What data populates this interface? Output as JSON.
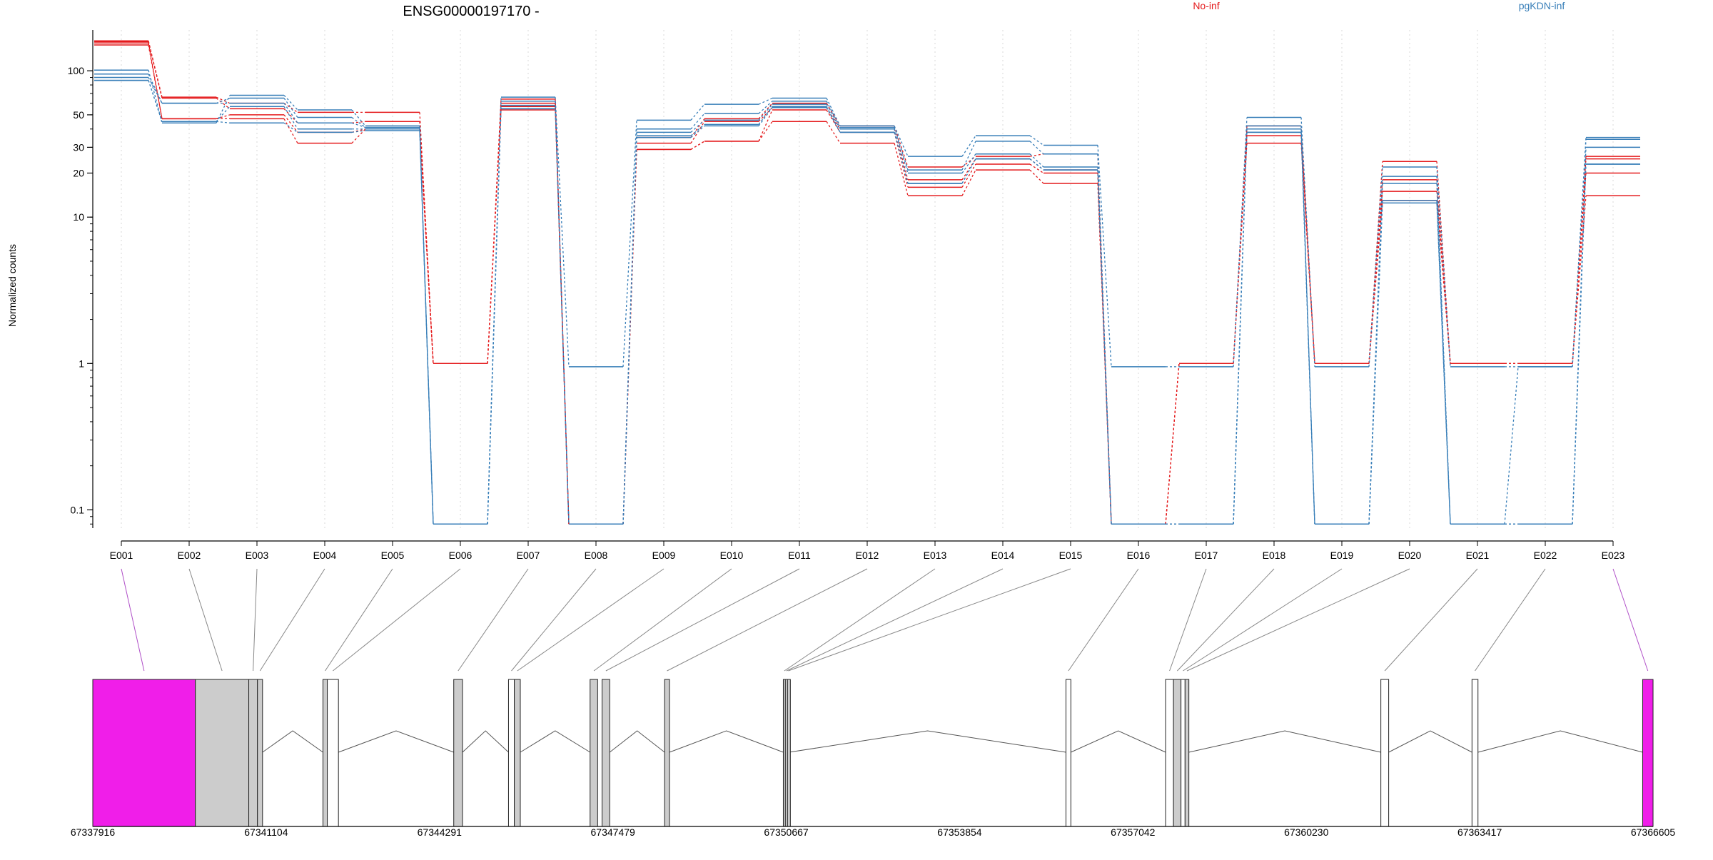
{
  "chart_data": {
    "type": "line",
    "title": "ENSG00000197170 -",
    "ylabel": "Normalized counts",
    "xlabel": "",
    "yscale": "log",
    "ylim": [
      0.075,
      190
    ],
    "yticks": [
      0.1,
      1,
      10,
      20,
      30,
      50,
      100
    ],
    "ytick_labels": [
      "0.1",
      "1",
      "10",
      "20",
      "30",
      "50",
      "100"
    ],
    "grid": "vertical dotted at each exon",
    "legend_placement": "top-right",
    "legend": [
      {
        "label": "No-inf",
        "color": "#e41a1c"
      },
      {
        "label": "pgKDN-inf",
        "color": "#377eb8"
      }
    ],
    "categories": [
      "E001",
      "E002",
      "E003",
      "E004",
      "E005",
      "E006",
      "E007",
      "E008",
      "E009",
      "E010",
      "E011",
      "E012",
      "E013",
      "E014",
      "E015",
      "E016",
      "E017",
      "E018",
      "E019",
      "E020",
      "E021",
      "E022",
      "E023"
    ],
    "series": [
      {
        "group": "No-inf",
        "color": "#e41a1c",
        "values": [
          160,
          66,
          60,
          52,
          52,
          1,
          64,
          0.08,
          35,
          47,
          60,
          42,
          22,
          26,
          27,
          0.08,
          1,
          42,
          1,
          24,
          1,
          1,
          26
        ]
      },
      {
        "group": "No-inf",
        "color": "#e41a1c",
        "values": [
          158,
          65,
          55,
          44,
          45,
          1,
          60,
          0.08,
          32,
          45,
          56,
          40,
          18,
          25,
          21,
          0.08,
          1,
          40,
          1,
          18,
          1,
          1,
          25
        ]
      },
      {
        "group": "No-inf",
        "color": "#e41a1c",
        "values": [
          155,
          47,
          50,
          38,
          40,
          1,
          57,
          0.08,
          29,
          33,
          54,
          38,
          16,
          23,
          20,
          0.08,
          1,
          36,
          1,
          15,
          1,
          1,
          20
        ]
      },
      {
        "group": "No-inf",
        "color": "#e41a1c",
        "values": [
          150,
          47,
          47,
          32,
          40,
          1,
          54,
          0.08,
          29,
          33,
          45,
          32,
          14,
          21,
          17,
          0.08,
          1,
          32,
          1,
          13,
          1,
          1,
          14
        ]
      },
      {
        "group": "pgKDN-inf",
        "color": "#377eb8",
        "values": [
          101,
          44,
          68,
          54,
          42,
          0.08,
          66,
          0.95,
          46,
          59,
          65,
          42,
          26,
          36,
          31,
          0.95,
          0.95,
          48,
          0.95,
          22,
          0.95,
          0.95,
          35
        ]
      },
      {
        "group": "pgKDN-inf",
        "color": "#377eb8",
        "values": [
          95,
          60,
          65,
          48,
          41,
          0.08,
          62,
          0.08,
          40,
          51,
          62,
          41,
          21,
          33,
          27,
          0.08,
          0.08,
          42,
          0.08,
          19,
          0.08,
          0.95,
          34
        ]
      },
      {
        "group": "pgKDN-inf",
        "color": "#377eb8",
        "values": [
          90,
          60,
          60,
          44,
          41,
          0.08,
          58,
          0.08,
          38,
          46,
          59,
          40,
          20,
          27,
          22,
          0.08,
          0.08,
          40,
          0.08,
          17,
          0.08,
          0.08,
          30
        ]
      },
      {
        "group": "pgKDN-inf",
        "color": "#377eb8",
        "values": [
          86,
          45,
          57,
          40,
          40,
          0.08,
          55,
          0.08,
          36,
          43,
          57,
          38,
          17,
          25,
          21,
          0.08,
          0.08,
          38,
          0.08,
          13,
          0.08,
          0.08,
          23
        ]
      },
      {
        "group": "pgKDN-inf",
        "color": "#377eb8",
        "values": [
          86,
          45,
          44,
          38,
          39,
          0.08,
          55,
          0.08,
          35,
          42,
          56,
          38,
          17,
          25,
          21,
          0.08,
          0.08,
          38,
          0.08,
          12.5,
          0.08,
          0.08,
          23
        ]
      }
    ],
    "gene_model": {
      "coordinate_range": [
        67337916,
        67366605
      ],
      "coordinate_ticks": [
        "67337916",
        "67341104",
        "67344291",
        "67347479",
        "67350667",
        "67353854",
        "67357042",
        "67360230",
        "67363417",
        "67366605"
      ],
      "exons": [
        {
          "id": "E001",
          "start": 67337916,
          "end": 67339802,
          "fill": "#f01ee9"
        },
        {
          "id": "E002",
          "start": 67339802,
          "end": 67340784,
          "fill": "#cccccc"
        },
        {
          "id": "E003",
          "start": 67340784,
          "end": 67340944,
          "fill": "#cccccc"
        },
        {
          "id": "E004",
          "start": 67340944,
          "end": 67341037,
          "fill": "#cccccc"
        },
        {
          "id": "E005",
          "start": 67342148,
          "end": 67342228,
          "fill": "#cccccc"
        },
        {
          "id": "E006",
          "start": 67342228,
          "end": 67342433,
          "fill": "#ffffff"
        },
        {
          "id": "E007",
          "start": 67344553,
          "end": 67344714,
          "fill": "#cccccc"
        },
        {
          "id": "E008",
          "start": 67345560,
          "end": 67345667,
          "fill": "#ffffff"
        },
        {
          "id": "E009",
          "start": 67345667,
          "end": 67345777,
          "fill": "#cccccc"
        },
        {
          "id": "E010",
          "start": 67347060,
          "end": 67347199,
          "fill": "#cccccc"
        },
        {
          "id": "E011",
          "start": 67347280,
          "end": 67347421,
          "fill": "#cccccc"
        },
        {
          "id": "E012",
          "start": 67348430,
          "end": 67348520,
          "fill": "#cccccc"
        },
        {
          "id": "E013",
          "start": 67350613,
          "end": 67350650,
          "fill": "#cccccc"
        },
        {
          "id": "E014",
          "start": 67350650,
          "end": 67350690,
          "fill": "#cccccc"
        },
        {
          "id": "E015",
          "start": 67350690,
          "end": 67350720,
          "fill": "#cccccc"
        },
        {
          "id": "E016",
          "start": 67355810,
          "end": 67355900,
          "fill": "#ffffff"
        },
        {
          "id": "E017",
          "start": 67357642,
          "end": 67357787,
          "fill": "#ffffff"
        },
        {
          "id": "E018",
          "start": 67357787,
          "end": 67357925,
          "fill": "#cccccc"
        },
        {
          "id": "E019",
          "start": 67357925,
          "end": 67358000,
          "fill": "#ffffff"
        },
        {
          "id": "E020",
          "start": 67358000,
          "end": 67358070,
          "fill": "#cccccc"
        },
        {
          "id": "E021",
          "start": 67361600,
          "end": 67361744,
          "fill": "#ffffff"
        },
        {
          "id": "E022",
          "start": 67363276,
          "end": 67363386,
          "fill": "#ffffff"
        },
        {
          "id": "E023",
          "start": 67366414,
          "end": 67366605,
          "fill": "#f01ee9"
        }
      ]
    }
  }
}
